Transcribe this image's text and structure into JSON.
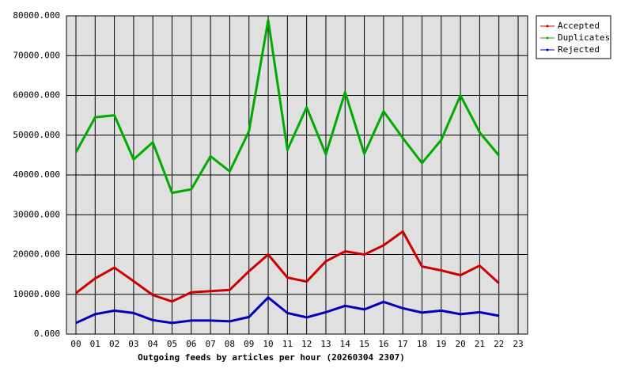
{
  "chart_data": {
    "type": "line",
    "x_label": "Outgoing feeds by articles per hour (20260304 2307)",
    "categories": [
      "00",
      "01",
      "02",
      "03",
      "04",
      "05",
      "06",
      "07",
      "08",
      "09",
      "10",
      "11",
      "12",
      "13",
      "14",
      "15",
      "16",
      "17",
      "18",
      "19",
      "20",
      "21",
      "22",
      "23"
    ],
    "series": [
      {
        "name": "Accepted",
        "color": "#cc0000",
        "values": [
          10300,
          14000,
          16700,
          13300,
          9800,
          8200,
          10500,
          10800,
          11100,
          15800,
          20000,
          14200,
          13200,
          18300,
          20800,
          20000,
          22300,
          25800,
          17000,
          16000,
          14800,
          17200,
          12800,
          null
        ]
      },
      {
        "name": "Duplicates",
        "color": "#00aa00",
        "values": [
          45700,
          54500,
          55000,
          43900,
          48200,
          35500,
          36400,
          44700,
          40900,
          51000,
          78900,
          46300,
          57000,
          45200,
          60800,
          45300,
          56000,
          49300,
          43000,
          48800,
          60000,
          50700,
          44900,
          null
        ]
      },
      {
        "name": "Rejected",
        "color": "#0000bb",
        "values": [
          2800,
          5000,
          5900,
          5300,
          3500,
          2800,
          3400,
          3400,
          3200,
          4300,
          9200,
          5300,
          4200,
          5500,
          7100,
          6200,
          8100,
          6500,
          5400,
          5900,
          5000,
          5500,
          4600,
          null
        ]
      }
    ],
    "ylim": [
      0,
      80000
    ],
    "yticks": [
      {
        "value": 0,
        "label": "0.000"
      },
      {
        "value": 10000,
        "label": "10000.000"
      },
      {
        "value": 20000,
        "label": "20000.000"
      },
      {
        "value": 30000,
        "label": "30000.000"
      },
      {
        "value": 40000,
        "label": "40000.000"
      },
      {
        "value": 50000,
        "label": "50000.000"
      },
      {
        "value": 60000,
        "label": "60000.000"
      },
      {
        "value": 70000,
        "label": "70000.000"
      },
      {
        "value": 80000,
        "label": "80000.000"
      }
    ],
    "grid": true,
    "legend": "top-right"
  }
}
